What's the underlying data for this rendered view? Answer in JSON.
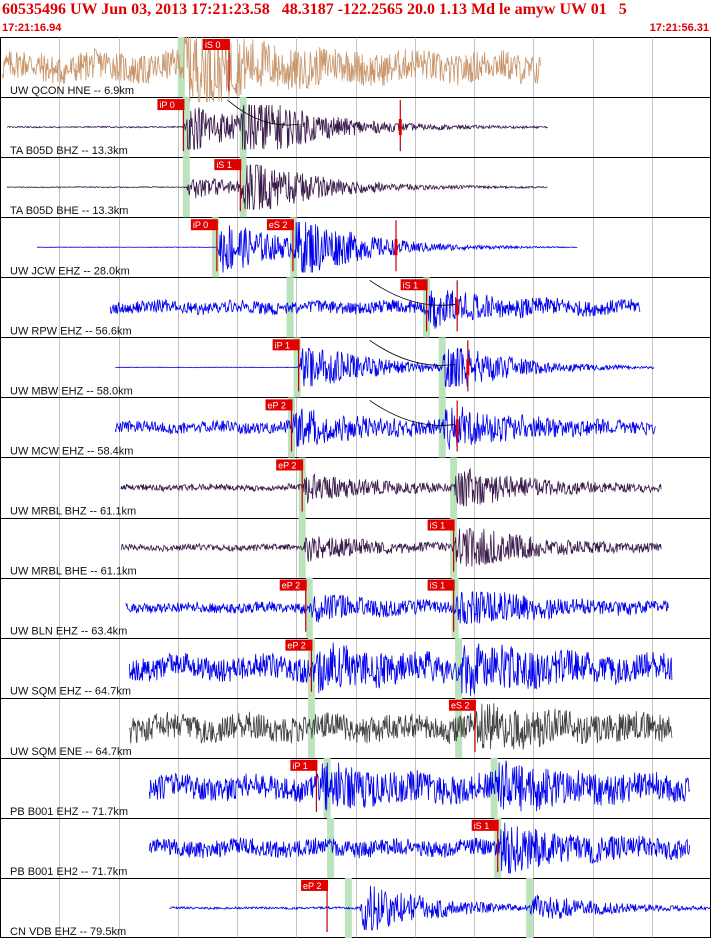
{
  "header": {
    "title": "60535496 UW Jun 03, 2013 17:21:23.58   48.3187 -122.2565 20.0 1.13 Md le amyw UW 01   5",
    "time_start": "17:21:16.94",
    "time_end": "17:21:56.31"
  },
  "chart_data": {
    "type": "line",
    "title": "60535496 UW Jun 03, 2013 17:21:23.58   48.3187 -122.2565 20.0 1.13 Md le amyw UW 01   5",
    "x_range": [
      "17:21:16.94",
      "17:21:56.31"
    ],
    "grid": true,
    "colors": {
      "green_band": "#bde3bd",
      "pick_box": "#e00000",
      "theoretical_curve": "#000000"
    },
    "series": [
      {
        "label": "UW QCON HNE -- 6.9km",
        "color": "#c8966a",
        "start": 0.003,
        "end": 0.76,
        "amp": 0.55,
        "events": [
          {
            "at": 0.255,
            "gain": 2.2
          }
        ],
        "noise": 0.9,
        "picks": [
          {
            "label": "iS 0",
            "at": 0.322
          }
        ],
        "bands": [
          0.255
        ]
      },
      {
        "label": "TA B05D BHZ -- 13.3km",
        "color": "#3a1a4a",
        "start": 0.01,
        "end": 0.77,
        "amp": 0.35,
        "events": [
          {
            "at": 0.258,
            "gain": 2.6
          },
          {
            "at": 0.335,
            "gain": 3.2
          }
        ],
        "noise": 0.06,
        "picks": [
          {
            "label": "iP 0",
            "at": 0.258
          },
          {
            "label": "",
            "at": 0.563
          }
        ],
        "bands": [
          0.262,
          0.342
        ]
      },
      {
        "label": "TA B05D BHE -- 13.3km",
        "color": "#3a1a4a",
        "start": 0.01,
        "end": 0.77,
        "amp": 0.35,
        "events": [
          {
            "at": 0.262,
            "gain": 1.2
          },
          {
            "at": 0.338,
            "gain": 3.0
          }
        ],
        "noise": 0.05,
        "picks": [
          {
            "label": "iS 1",
            "at": 0.338
          }
        ],
        "bands": [
          0.262,
          0.342
        ]
      },
      {
        "label": "UW JCW EHZ -- 28.0km",
        "color": "#0000ee",
        "start": 0.052,
        "end": 0.812,
        "amp": 0.4,
        "events": [
          {
            "at": 0.305,
            "gain": 2.6
          },
          {
            "at": 0.412,
            "gain": 2.4
          }
        ],
        "noise": 0.0,
        "picks": [
          {
            "label": "iP 0",
            "at": 0.305
          },
          {
            "label": "eS 2",
            "at": 0.412
          },
          {
            "label": "",
            "at": 0.557
          }
        ],
        "bands": [
          0.303,
          0.413
        ]
      },
      {
        "label": "UW RPW EHZ -- 56.6km",
        "color": "#0000ee",
        "start": 0.155,
        "end": 0.9,
        "amp": 0.35,
        "events": [
          {
            "at": 0.6,
            "gain": 1.5
          }
        ],
        "noise": 0.6,
        "picks": [
          {
            "label": "iS 1",
            "at": 0.6
          },
          {
            "label": "",
            "at": 0.643
          }
        ],
        "bands": [
          0.408,
          0.6
        ]
      },
      {
        "label": "UW MBW EHZ -- 58.0km",
        "color": "#0000ee",
        "start": 0.162,
        "end": 0.92,
        "amp": 0.3,
        "events": [
          {
            "at": 0.42,
            "gain": 3.4
          },
          {
            "at": 0.62,
            "gain": 3.0
          }
        ],
        "noise": 0.03,
        "picks": [
          {
            "label": "iP 1",
            "at": 0.42
          },
          {
            "label": "",
            "at": 0.658
          }
        ],
        "bands": [
          0.418,
          0.622
        ]
      },
      {
        "label": "UW MCW EHZ -- 58.4km",
        "color": "#0000ee",
        "start": 0.162,
        "end": 0.922,
        "amp": 0.35,
        "events": [
          {
            "at": 0.41,
            "gain": 1.6
          },
          {
            "at": 0.622,
            "gain": 1.8
          }
        ],
        "noise": 0.55,
        "picks": [
          {
            "label": "eP 2",
            "at": 0.41
          },
          {
            "label": "",
            "at": 0.643
          }
        ],
        "bands": [
          0.41,
          0.622
        ]
      },
      {
        "label": "UW MRBL BHZ -- 61.1km",
        "color": "#3a1a4a",
        "start": 0.17,
        "end": 0.93,
        "amp": 0.3,
        "events": [
          {
            "at": 0.425,
            "gain": 1.6
          },
          {
            "at": 0.638,
            "gain": 2.2
          }
        ],
        "noise": 0.35,
        "picks": [
          {
            "label": "eP 2",
            "at": 0.425
          }
        ],
        "bands": [
          0.425,
          0.638
        ]
      },
      {
        "label": "UW MRBL BHE -- 61.1km",
        "color": "#3a1a4a",
        "start": 0.17,
        "end": 0.93,
        "amp": 0.3,
        "events": [
          {
            "at": 0.425,
            "gain": 1.3
          },
          {
            "at": 0.638,
            "gain": 2.8
          }
        ],
        "noise": 0.35,
        "picks": [
          {
            "label": "iS 1",
            "at": 0.638
          }
        ],
        "bands": [
          0.425,
          0.638
        ]
      },
      {
        "label": "UW BLN EHZ -- 63.4km",
        "color": "#0000ee",
        "start": 0.177,
        "end": 0.94,
        "amp": 0.25,
        "events": [
          {
            "at": 0.435,
            "gain": 1.4
          },
          {
            "at": 0.64,
            "gain": 2.6
          }
        ],
        "noise": 0.7,
        "picks": [
          {
            "label": "eP 2",
            "at": 0.43
          },
          {
            "label": "iS 1",
            "at": 0.638
          }
        ],
        "bands": [
          0.435,
          0.64
        ]
      },
      {
        "label": "UW SQM EHZ -- 64.7km",
        "color": "#0000ee",
        "start": 0.182,
        "end": 0.945,
        "amp": 0.45,
        "events": [
          {
            "at": 0.438,
            "gain": 1.2
          },
          {
            "at": 0.645,
            "gain": 1.4
          }
        ],
        "noise": 0.9,
        "picks": [
          {
            "label": "eP 2",
            "at": 0.438
          }
        ],
        "bands": [
          0.438,
          0.645
        ]
      },
      {
        "label": "UW SQM ENE -- 64.7km",
        "color": "#404040",
        "start": 0.182,
        "end": 0.945,
        "amp": 0.45,
        "events": [
          {
            "at": 0.668,
            "gain": 1.1
          }
        ],
        "noise": 0.95,
        "picks": [
          {
            "label": "eS 2",
            "at": 0.668
          }
        ],
        "bands": [
          0.438,
          0.645
        ]
      },
      {
        "label": "PB B001 EHZ -- 71.7km",
        "color": "#0000ee",
        "start": 0.21,
        "end": 0.97,
        "amp": 0.45,
        "events": [
          {
            "at": 0.445,
            "gain": 1.2
          },
          {
            "at": 0.695,
            "gain": 1.3
          }
        ],
        "noise": 0.9,
        "picks": [
          {
            "label": "iP 1",
            "at": 0.445
          }
        ],
        "bands": [
          0.46,
          0.695
        ]
      },
      {
        "label": "PB B001 EH2 -- 71.7km",
        "color": "#0000ee",
        "start": 0.21,
        "end": 0.97,
        "amp": 0.4,
        "events": [
          {
            "at": 0.7,
            "gain": 1.8
          }
        ],
        "noise": 0.7,
        "picks": [
          {
            "label": "iS 1",
            "at": 0.7
          }
        ],
        "bands": [
          0.465,
          0.7
        ]
      },
      {
        "label": "CN VDB EHZ -- 79.5km",
        "color": "#0000ee",
        "start": 0.238,
        "end": 1.0,
        "amp": 0.35,
        "events": [
          {
            "at": 0.505,
            "gain": 2.8
          },
          {
            "at": 0.745,
            "gain": 1.4
          }
        ],
        "noise": 0.1,
        "picks": [
          {
            "label": "eP 2",
            "at": 0.46
          }
        ],
        "bands": [
          0.49,
          0.745
        ]
      }
    ]
  }
}
